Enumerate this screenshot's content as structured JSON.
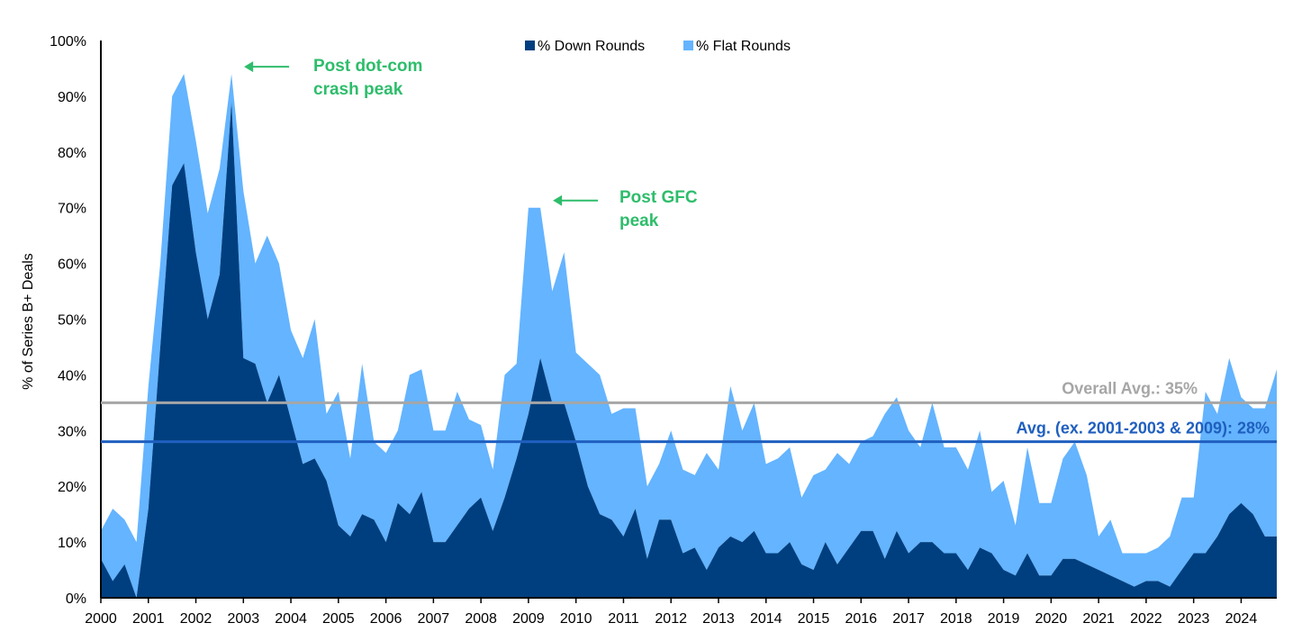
{
  "chart_data": {
    "type": "area",
    "stacked": true,
    "ylabel": "% of Series B+ Deals",
    "xlabel": "",
    "ylim": [
      0,
      100
    ],
    "xlim": [
      2000,
      2024.75
    ],
    "y_ticks": [
      "0%",
      "10%",
      "20%",
      "30%",
      "40%",
      "50%",
      "60%",
      "70%",
      "80%",
      "90%",
      "100%"
    ],
    "x_ticks": [
      "2000",
      "2001",
      "2002",
      "2003",
      "2004",
      "2005",
      "2006",
      "2007",
      "2008",
      "2009",
      "2010",
      "2011",
      "2012",
      "2013",
      "2014",
      "2015",
      "2016",
      "2017",
      "2018",
      "2019",
      "2020",
      "2021",
      "2022",
      "2023",
      "2024"
    ],
    "legend_position": "top-center",
    "grid": false,
    "x": [
      2000,
      2000.25,
      2000.5,
      2000.75,
      2001,
      2001.25,
      2001.5,
      2001.75,
      2002,
      2002.25,
      2002.5,
      2002.75,
      2003,
      2003.25,
      2003.5,
      2003.75,
      2004,
      2004.25,
      2004.5,
      2004.75,
      2005,
      2005.25,
      2005.5,
      2005.75,
      2006,
      2006.25,
      2006.5,
      2006.75,
      2007,
      2007.25,
      2007.5,
      2007.75,
      2008,
      2008.25,
      2008.5,
      2008.75,
      2009,
      2009.25,
      2009.5,
      2009.75,
      2010,
      2010.25,
      2010.5,
      2010.75,
      2011,
      2011.25,
      2011.5,
      2011.75,
      2012,
      2012.25,
      2012.5,
      2012.75,
      2013,
      2013.25,
      2013.5,
      2013.75,
      2014,
      2014.25,
      2014.5,
      2014.75,
      2015,
      2015.25,
      2015.5,
      2015.75,
      2016,
      2016.25,
      2016.5,
      2016.75,
      2017,
      2017.25,
      2017.5,
      2017.75,
      2018,
      2018.25,
      2018.5,
      2018.75,
      2019,
      2019.25,
      2019.5,
      2019.75,
      2020,
      2020.25,
      2020.5,
      2020.75,
      2021,
      2021.25,
      2021.5,
      2021.75,
      2022,
      2022.25,
      2022.5,
      2022.75,
      2023,
      2023.25,
      2023.5,
      2023.75,
      2024,
      2024.25,
      2024.5,
      2024.75
    ],
    "series": [
      {
        "name": "% Down Rounds",
        "color": "#003f7f",
        "values": [
          7,
          3,
          6,
          0,
          16,
          45,
          74,
          78,
          62,
          50,
          58,
          89,
          43,
          42,
          35,
          40,
          32,
          24,
          25,
          21,
          13,
          11,
          15,
          14,
          10,
          17,
          15,
          19,
          10,
          10,
          13,
          16,
          18,
          12,
          18,
          25,
          33,
          43,
          35,
          35,
          28,
          20,
          15,
          14,
          11,
          16,
          7,
          14,
          14,
          8,
          9,
          5,
          9,
          11,
          10,
          12,
          8,
          8,
          10,
          6,
          5,
          10,
          6,
          9,
          12,
          12,
          7,
          12,
          8,
          10,
          10,
          8,
          8,
          5,
          9,
          8,
          5,
          4,
          8,
          4,
          4,
          7,
          7,
          6,
          5,
          4,
          3,
          2,
          3,
          3,
          2,
          5,
          8,
          8,
          11,
          15,
          17,
          15,
          11,
          11
        ]
      },
      {
        "name": "% Flat Rounds",
        "color": "#64b4ff",
        "values": [
          5,
          13,
          8,
          10,
          22,
          15,
          16,
          16,
          20,
          19,
          19,
          5,
          30,
          18,
          30,
          20,
          16,
          19,
          25,
          12,
          24,
          14,
          27,
          14,
          16,
          13,
          25,
          22,
          20,
          20,
          24,
          16,
          13,
          11,
          22,
          17,
          37,
          27,
          20,
          27,
          16,
          22,
          25,
          19,
          23,
          18,
          13,
          10,
          16,
          15,
          13,
          21,
          14,
          27,
          20,
          23,
          16,
          17,
          17,
          12,
          17,
          13,
          20,
          15,
          16,
          17,
          26,
          24,
          22,
          17,
          25,
          19,
          19,
          18,
          21,
          11,
          16,
          9,
          19,
          13,
          13,
          18,
          21,
          16,
          6,
          10,
          5,
          6,
          5,
          6,
          9,
          13,
          10,
          29,
          22,
          28,
          19,
          19,
          23,
          30
        ]
      }
    ],
    "reference_lines": [
      {
        "label": "Overall Avg.: 35%",
        "value": 35,
        "color": "#a6a6a6"
      },
      {
        "label": "Avg. (ex. 2001-2003 & 2009): 28%",
        "value": 28,
        "color": "#1f5fbf"
      }
    ],
    "annotations": [
      {
        "lines": [
          "Post dot-com",
          "crash peak"
        ],
        "x": 2002.75,
        "y": 94,
        "color": "#2ebd6b"
      },
      {
        "lines": [
          "Post GFC",
          "peak"
        ],
        "x": 2009.25,
        "y": 70,
        "color": "#2ebd6b"
      }
    ]
  }
}
